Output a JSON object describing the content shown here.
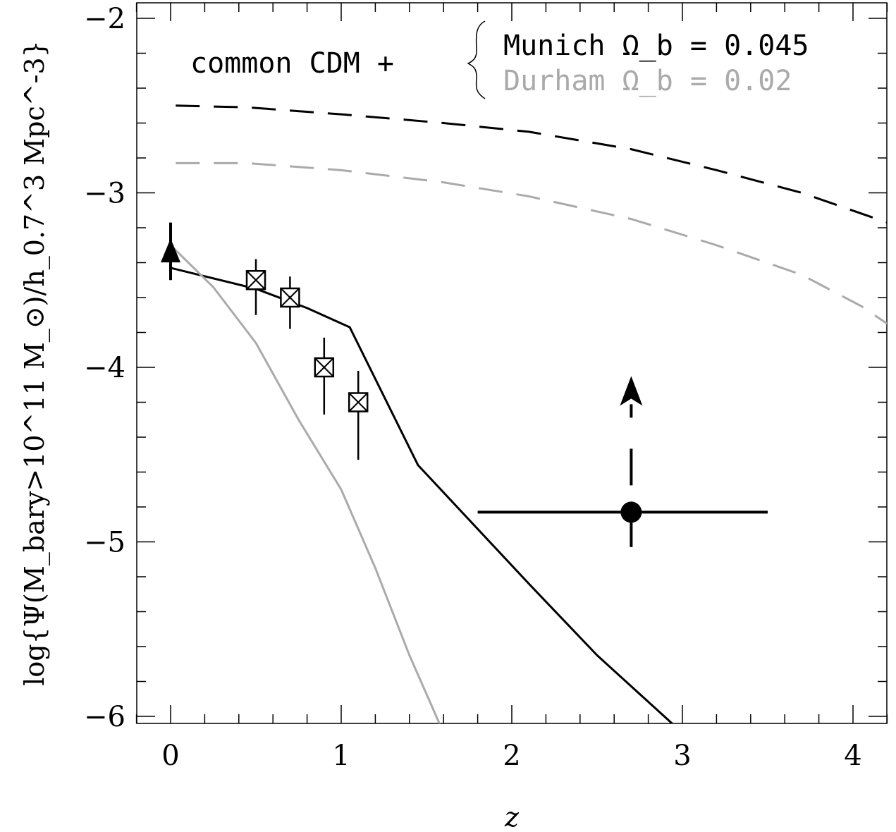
{
  "chart_data": {
    "type": "line",
    "title": "",
    "xlabel": "z",
    "ylabel": "log{Ψ(M_bary>10^11 M_⊙)/h_0.7^3 Mpc^-3}",
    "xlim": [
      -0.2,
      4.2
    ],
    "ylim": [
      -6.05,
      -1.9
    ],
    "x_major_ticks": [
      0,
      1,
      2,
      3,
      4
    ],
    "x_minor_step": 0.2,
    "y_major_ticks": [
      -6,
      -5,
      -4,
      -3,
      -2
    ],
    "y_minor_step": 0.2,
    "x_tick_labels": [
      "0",
      "1",
      "2",
      "3",
      "4"
    ],
    "y_tick_labels": [
      "−6",
      "−5",
      "−4",
      "−3",
      "−2"
    ],
    "grid": false,
    "legend": {
      "prefix": "common CDM +",
      "entries": [
        {
          "label": "Munich Ω_b = 0.045",
          "color": "#000000"
        },
        {
          "label": "Durham Ω_b = 0.02",
          "color": "#aaaaaa"
        }
      ]
    },
    "series": [
      {
        "style": "dashed",
        "color": "#000000",
        "x": [
          0.03,
          0.45,
          1.0,
          1.6,
          2.1,
          2.7,
          3.2,
          3.7,
          4.2
        ],
        "y": [
          -2.5,
          -2.51,
          -2.55,
          -2.6,
          -2.65,
          -2.75,
          -2.87,
          -3.0,
          -3.17
        ]
      },
      {
        "style": "dashed",
        "color": "#aaaaaa",
        "x": [
          0.03,
          0.45,
          1.0,
          1.6,
          2.1,
          2.7,
          3.2,
          3.7,
          4.05,
          4.2
        ],
        "y": [
          -2.83,
          -2.83,
          -2.87,
          -2.94,
          -3.02,
          -3.15,
          -3.3,
          -3.47,
          -3.65,
          -3.75
        ]
      },
      {
        "style": "solid",
        "color": "#000000",
        "x": [
          0.0,
          0.5,
          0.8,
          1.05,
          1.45,
          2.1,
          2.5,
          2.95
        ],
        "y": [
          -3.43,
          -3.55,
          -3.66,
          -3.77,
          -4.56,
          -5.24,
          -5.65,
          -6.05
        ]
      },
      {
        "style": "solid",
        "color": "#aaaaaa",
        "x": [
          0.0,
          0.25,
          0.5,
          0.75,
          1.0,
          1.2,
          1.4,
          1.58
        ],
        "y": [
          -3.3,
          -3.54,
          -3.86,
          -4.3,
          -4.7,
          -5.15,
          -5.65,
          -6.05
        ]
      }
    ],
    "points": [
      {
        "marker": "triangle",
        "x": 0.0,
        "y": -3.35,
        "yerr_low": -3.5,
        "yerr_high": -3.17
      },
      {
        "marker": "boxed-x",
        "x": 0.5,
        "y": -3.5,
        "yerr_low": -3.7,
        "yerr_high": -3.38
      },
      {
        "marker": "boxed-x",
        "x": 0.7,
        "y": -3.6,
        "yerr_low": -3.78,
        "yerr_high": -3.48
      },
      {
        "marker": "boxed-x",
        "x": 0.9,
        "y": -4.0,
        "yerr_low": -4.27,
        "yerr_high": -3.83
      },
      {
        "marker": "boxed-x",
        "x": 1.1,
        "y": -4.2,
        "yerr_low": -4.53,
        "yerr_high": -4.02
      },
      {
        "marker": "filled-circle",
        "x": 2.7,
        "y": -4.83,
        "xerr_low": 1.8,
        "xerr_high": 3.5,
        "yerr_low": -5.03,
        "lower_limit_to": -4.05
      }
    ]
  }
}
